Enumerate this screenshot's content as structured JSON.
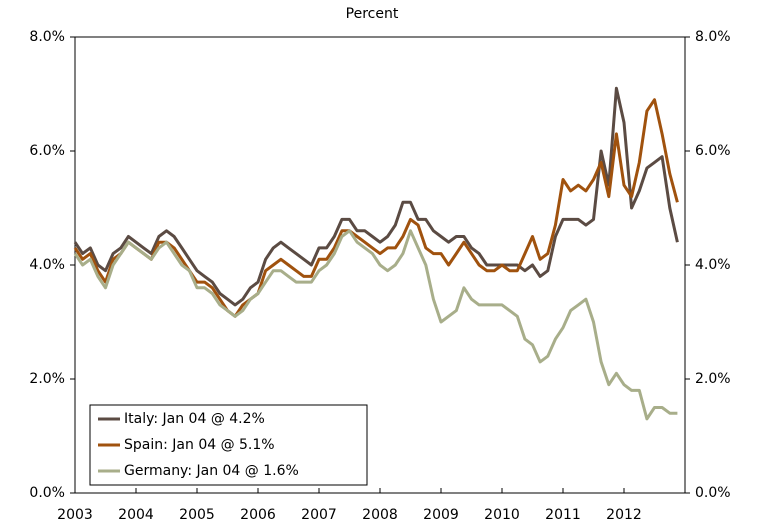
{
  "chart_data": {
    "type": "line",
    "title": "Percent",
    "x": [
      2003,
      2003.125,
      2003.25,
      2003.375,
      2003.5,
      2003.625,
      2003.75,
      2003.875,
      2004,
      2004.125,
      2004.25,
      2004.375,
      2004.5,
      2004.625,
      2004.75,
      2004.875,
      2005,
      2005.125,
      2005.25,
      2005.375,
      2005.5,
      2005.625,
      2005.75,
      2005.875,
      2006,
      2006.125,
      2006.25,
      2006.375,
      2006.5,
      2006.625,
      2006.75,
      2006.875,
      2007,
      2007.125,
      2007.25,
      2007.375,
      2007.5,
      2007.625,
      2007.75,
      2007.875,
      2008,
      2008.125,
      2008.25,
      2008.375,
      2008.5,
      2008.625,
      2008.75,
      2008.875,
      2009,
      2009.125,
      2009.25,
      2009.375,
      2009.5,
      2009.625,
      2009.75,
      2009.875,
      2010,
      2010.125,
      2010.25,
      2010.375,
      2010.5,
      2010.625,
      2010.75,
      2010.875,
      2011,
      2011.125,
      2011.25,
      2011.375,
      2011.5,
      2011.625,
      2011.75,
      2011.875,
      2012,
      2012.125,
      2012.25,
      2012.375,
      2012.5,
      2012.625,
      2012.75,
      2012.875
    ],
    "series": [
      {
        "name": "Italy: Jan 04 @ 4.2%",
        "color": "#5b4b43",
        "values": [
          4.4,
          4.2,
          4.3,
          4.0,
          3.9,
          4.2,
          4.3,
          4.5,
          4.4,
          4.3,
          4.2,
          4.5,
          4.6,
          4.5,
          4.3,
          4.1,
          3.9,
          3.8,
          3.7,
          3.5,
          3.4,
          3.3,
          3.4,
          3.6,
          3.7,
          4.1,
          4.3,
          4.4,
          4.3,
          4.2,
          4.1,
          4.0,
          4.3,
          4.3,
          4.5,
          4.8,
          4.8,
          4.6,
          4.6,
          4.5,
          4.4,
          4.5,
          4.7,
          5.1,
          5.1,
          4.8,
          4.8,
          4.6,
          4.5,
          4.4,
          4.5,
          4.5,
          4.3,
          4.2,
          4.0,
          4.0,
          4.0,
          4.0,
          4.0,
          3.9,
          4.0,
          3.8,
          3.9,
          4.5,
          4.8,
          4.8,
          4.8,
          4.7,
          4.8,
          6.0,
          5.4,
          7.1,
          6.5,
          5.0,
          5.3,
          5.7,
          5.8,
          5.9,
          5.0,
          4.4
        ]
      },
      {
        "name": "Spain: Jan 04 @ 5.1%",
        "color": "#a0520e",
        "values": [
          4.3,
          4.1,
          4.2,
          3.9,
          3.7,
          4.1,
          4.2,
          4.4,
          4.3,
          4.2,
          4.1,
          4.4,
          4.4,
          4.3,
          4.1,
          3.9,
          3.7,
          3.7,
          3.6,
          3.4,
          3.2,
          3.1,
          3.3,
          3.4,
          3.5,
          3.9,
          4.0,
          4.1,
          4.0,
          3.9,
          3.8,
          3.8,
          4.1,
          4.1,
          4.3,
          4.6,
          4.6,
          4.5,
          4.4,
          4.3,
          4.2,
          4.3,
          4.3,
          4.5,
          4.8,
          4.7,
          4.3,
          4.2,
          4.2,
          4.0,
          4.2,
          4.4,
          4.2,
          4.0,
          3.9,
          3.9,
          4.0,
          3.9,
          3.9,
          4.2,
          4.5,
          4.1,
          4.2,
          4.7,
          5.5,
          5.3,
          5.4,
          5.3,
          5.5,
          5.8,
          5.2,
          6.3,
          5.4,
          5.2,
          5.8,
          6.7,
          6.9,
          6.3,
          5.6,
          5.1
        ]
      },
      {
        "name": "Germany: Jan 04 @ 1.6%",
        "color": "#a8ae8a",
        "values": [
          4.2,
          4.0,
          4.1,
          3.8,
          3.6,
          4.0,
          4.2,
          4.4,
          4.3,
          4.2,
          4.1,
          4.3,
          4.4,
          4.2,
          4.0,
          3.9,
          3.6,
          3.6,
          3.5,
          3.3,
          3.2,
          3.1,
          3.2,
          3.4,
          3.5,
          3.7,
          3.9,
          3.9,
          3.8,
          3.7,
          3.7,
          3.7,
          3.9,
          4.0,
          4.2,
          4.5,
          4.6,
          4.4,
          4.3,
          4.2,
          4.0,
          3.9,
          4.0,
          4.2,
          4.6,
          4.3,
          4.0,
          3.4,
          3.0,
          3.1,
          3.2,
          3.6,
          3.4,
          3.3,
          3.3,
          3.3,
          3.3,
          3.2,
          3.1,
          2.7,
          2.6,
          2.3,
          2.4,
          2.7,
          2.9,
          3.2,
          3.3,
          3.4,
          3.0,
          2.3,
          1.9,
          2.1,
          1.9,
          1.8,
          1.8,
          1.3,
          1.5,
          1.5,
          1.4,
          1.4
        ]
      }
    ],
    "xlim": [
      2003,
      2013
    ],
    "xticks": [
      2003,
      2004,
      2005,
      2006,
      2007,
      2008,
      2009,
      2010,
      2011,
      2012
    ],
    "ylim": [
      0,
      8
    ],
    "yticks": [
      {
        "value": 0,
        "label": "0.0%"
      },
      {
        "value": 2,
        "label": "2.0%"
      },
      {
        "value": 4,
        "label": "4.0%"
      },
      {
        "value": 6,
        "label": "6.0%"
      },
      {
        "value": 8,
        "label": "8.0%"
      }
    ],
    "y2lim": [
      0,
      8
    ],
    "y2ticks": [
      {
        "value": 0,
        "label": "0.0%"
      },
      {
        "value": 2,
        "label": "2.0%"
      },
      {
        "value": 4,
        "label": "4.0%"
      },
      {
        "value": 6,
        "label": "6.0%"
      },
      {
        "value": 8,
        "label": "8.0%"
      }
    ],
    "grid": false,
    "legend": "lower left"
  }
}
